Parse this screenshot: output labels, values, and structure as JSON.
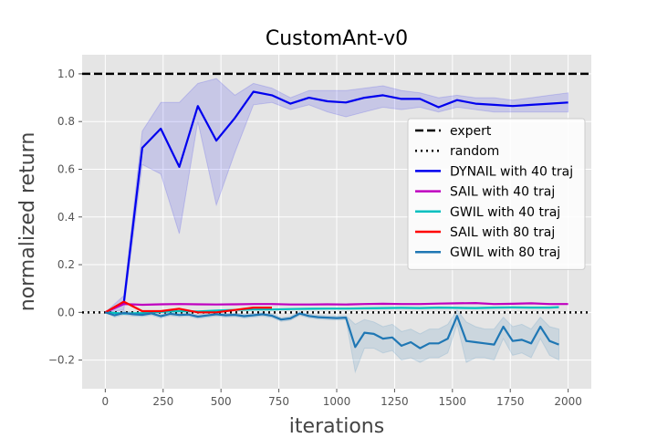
{
  "chart_data": {
    "type": "line",
    "title": "CustomAnt-v0",
    "xlabel": "iterations",
    "ylabel": "normalized return",
    "xlim": [
      -100,
      2100
    ],
    "ylim": [
      -0.32,
      1.08
    ],
    "xticks": [
      0,
      250,
      500,
      750,
      1000,
      1250,
      1500,
      1750,
      2000
    ],
    "xtick_labels": [
      "0",
      "250",
      "500",
      "750",
      "1000",
      "1250",
      "1500",
      "1750",
      "2000"
    ],
    "yticks": [
      -0.2,
      0.0,
      0.2,
      0.4,
      0.6,
      0.8,
      1.0
    ],
    "ytick_labels": [
      "−0.2",
      "0.0",
      "0.2",
      "0.4",
      "0.6",
      "0.8",
      "1.0"
    ],
    "grid": true,
    "legend_position": "center-right",
    "reference_lines": [
      {
        "name": "expert",
        "y": 1.0,
        "style": "dashed",
        "color": "#000000"
      },
      {
        "name": "random",
        "y": 0.0,
        "style": "dotted",
        "color": "#000000"
      }
    ],
    "series": [
      {
        "name": "DYNAIL with 40 traj",
        "color": "#0000ee",
        "x": [
          0,
          80,
          160,
          240,
          320,
          400,
          480,
          560,
          640,
          720,
          800,
          880,
          960,
          1040,
          1120,
          1200,
          1280,
          1360,
          1440,
          1520,
          1600,
          1680,
          1760,
          1840,
          1920,
          2000
        ],
        "y": [
          0.0,
          0.04,
          0.69,
          0.77,
          0.61,
          0.865,
          0.72,
          0.815,
          0.925,
          0.91,
          0.875,
          0.9,
          0.885,
          0.88,
          0.9,
          0.91,
          0.895,
          0.895,
          0.86,
          0.89,
          0.875,
          0.87,
          0.865,
          0.87,
          0.875,
          0.88
        ],
        "band_low": [
          0.0,
          0.01,
          0.62,
          0.58,
          0.33,
          0.8,
          0.45,
          0.67,
          0.87,
          0.88,
          0.85,
          0.87,
          0.84,
          0.82,
          0.84,
          0.86,
          0.85,
          0.86,
          0.84,
          0.86,
          0.85,
          0.84,
          0.84,
          0.84,
          0.84,
          0.84
        ],
        "band_high": [
          0.0,
          0.07,
          0.76,
          0.88,
          0.88,
          0.96,
          0.98,
          0.91,
          0.96,
          0.94,
          0.9,
          0.93,
          0.93,
          0.93,
          0.94,
          0.95,
          0.93,
          0.92,
          0.9,
          0.91,
          0.9,
          0.9,
          0.89,
          0.9,
          0.91,
          0.92
        ]
      },
      {
        "name": "SAIL with 40 traj",
        "color": "#bf00bf",
        "x": [
          0,
          80,
          160,
          240,
          320,
          400,
          480,
          560,
          640,
          720,
          800,
          880,
          960,
          1040,
          1120,
          1200,
          1280,
          1360,
          1440,
          1520,
          1600,
          1680,
          1760,
          1840,
          1920,
          2000
        ],
        "y": [
          0.0,
          0.035,
          0.032,
          0.034,
          0.035,
          0.034,
          0.033,
          0.034,
          0.035,
          0.035,
          0.033,
          0.033,
          0.034,
          0.033,
          0.035,
          0.036,
          0.035,
          0.035,
          0.037,
          0.038,
          0.039,
          0.035,
          0.036,
          0.038,
          0.035,
          0.035
        ]
      },
      {
        "name": "GWIL with 40 traj",
        "color": "#00bfbf",
        "x": [
          0,
          80,
          160,
          240,
          320,
          400,
          480,
          560,
          640,
          720,
          800,
          880,
          960,
          1040,
          1120,
          1200,
          1280,
          1360,
          1440,
          1520,
          1600,
          1680,
          1760,
          1840,
          1920,
          1960
        ],
        "y": [
          0.0,
          -0.005,
          -0.003,
          0.002,
          0.005,
          0.004,
          0.008,
          0.01,
          0.012,
          0.012,
          0.014,
          0.015,
          0.016,
          0.016,
          0.017,
          0.018,
          0.019,
          0.018,
          0.02,
          0.019,
          0.018,
          0.02,
          0.021,
          0.02,
          0.02,
          0.022
        ]
      },
      {
        "name": "SAIL with 80 traj",
        "color": "#ff0000",
        "x": [
          0,
          80,
          160,
          240,
          320,
          400,
          480,
          560,
          640,
          720
        ],
        "y": [
          0.0,
          0.045,
          0.005,
          0.005,
          0.015,
          0.0,
          0.0,
          0.01,
          0.02,
          0.02
        ]
      },
      {
        "name": "GWIL with 80 traj",
        "color": "#1f77b4",
        "x": [
          0,
          40,
          80,
          120,
          160,
          200,
          240,
          280,
          320,
          360,
          400,
          440,
          480,
          520,
          560,
          600,
          640,
          680,
          720,
          760,
          800,
          840,
          880,
          920,
          960,
          1000,
          1040,
          1080,
          1120,
          1160,
          1200,
          1240,
          1280,
          1320,
          1360,
          1400,
          1440,
          1480,
          1520,
          1560,
          1600,
          1640,
          1680,
          1720,
          1760,
          1800,
          1840,
          1880,
          1920,
          1960
        ],
        "y": [
          0.0,
          -0.012,
          -0.002,
          -0.008,
          -0.01,
          -0.004,
          -0.016,
          -0.006,
          -0.011,
          -0.009,
          -0.018,
          -0.013,
          -0.008,
          -0.012,
          -0.01,
          -0.016,
          -0.012,
          -0.008,
          -0.014,
          -0.03,
          -0.025,
          -0.005,
          -0.015,
          -0.02,
          -0.022,
          -0.024,
          -0.022,
          -0.145,
          -0.085,
          -0.09,
          -0.11,
          -0.105,
          -0.14,
          -0.125,
          -0.15,
          -0.13,
          -0.13,
          -0.11,
          -0.015,
          -0.12,
          -0.125,
          -0.13,
          -0.135,
          -0.06,
          -0.12,
          -0.115,
          -0.13,
          -0.06,
          -0.12,
          -0.135
        ],
        "band_low": [
          0.0,
          -0.02,
          -0.01,
          -0.016,
          -0.018,
          -0.012,
          -0.024,
          -0.014,
          -0.019,
          -0.017,
          -0.026,
          -0.021,
          -0.016,
          -0.02,
          -0.018,
          -0.024,
          -0.02,
          -0.016,
          -0.022,
          -0.038,
          -0.033,
          -0.013,
          -0.023,
          -0.028,
          -0.03,
          -0.032,
          -0.03,
          -0.25,
          -0.15,
          -0.15,
          -0.17,
          -0.16,
          -0.2,
          -0.19,
          -0.21,
          -0.19,
          -0.19,
          -0.17,
          -0.05,
          -0.21,
          -0.19,
          -0.19,
          -0.2,
          -0.11,
          -0.18,
          -0.17,
          -0.19,
          -0.11,
          -0.18,
          -0.2
        ],
        "band_high": [
          0.0,
          -0.004,
          0.006,
          0.0,
          -0.002,
          0.004,
          -0.008,
          0.002,
          -0.003,
          -0.001,
          -0.01,
          -0.005,
          0.0,
          -0.004,
          -0.002,
          -0.008,
          -0.004,
          0.0,
          -0.006,
          -0.022,
          -0.017,
          0.003,
          -0.007,
          -0.012,
          -0.014,
          -0.016,
          -0.014,
          -0.05,
          -0.03,
          -0.04,
          -0.06,
          -0.05,
          -0.08,
          -0.07,
          -0.09,
          -0.07,
          -0.07,
          -0.05,
          0.01,
          -0.04,
          -0.06,
          -0.07,
          -0.07,
          -0.02,
          -0.06,
          -0.05,
          -0.07,
          -0.02,
          -0.06,
          -0.07
        ]
      }
    ]
  }
}
